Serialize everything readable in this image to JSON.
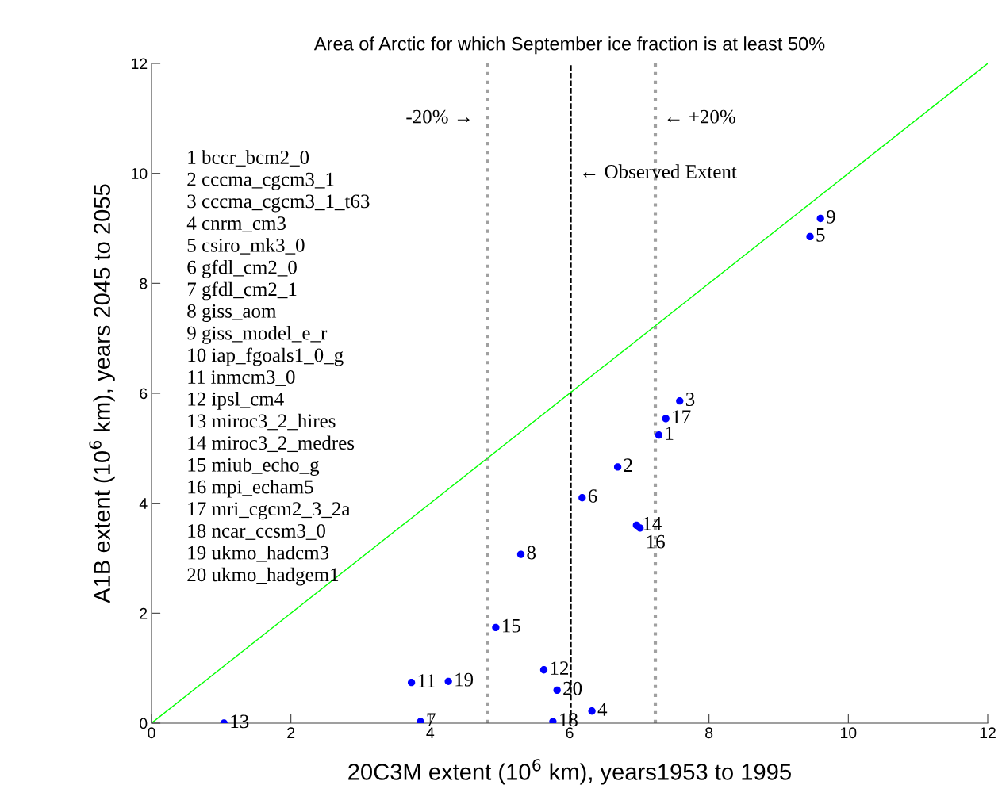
{
  "chart_data": {
    "type": "scatter",
    "title": "Area of Arctic for which September ice fraction is at least 50%",
    "xlabel": "20C3M extent (10$^{6}$ km), years1953 to 1995",
    "ylabel": "A1B extent (10$^{6}$ km), years 2045 to 2055",
    "xlim": [
      0,
      12
    ],
    "ylim": [
      0,
      12
    ],
    "xticks": [
      0,
      2,
      4,
      6,
      8,
      10,
      12
    ],
    "yticks": [
      0,
      2,
      4,
      6,
      8,
      10,
      12
    ],
    "grid": false,
    "legend": false,
    "marker": "circle",
    "series": [
      {
        "color": "#0000ff",
        "x": [
          7.28,
          6.69,
          7.58,
          6.32,
          9.45,
          6.18,
          3.86,
          5.3,
          9.6,
          3.73,
          5.63,
          1.04,
          6.96,
          4.94,
          7.01,
          7.38,
          5.76,
          4.26,
          5.82
        ],
        "values": [
          5.24,
          4.66,
          5.86,
          0.22,
          8.85,
          4.1,
          0.03,
          3.07,
          9.18,
          0.74,
          0.97,
          0.0,
          3.6,
          1.74,
          3.55,
          5.54,
          0.03,
          0.76,
          0.6
        ]
      },
      {
        "type": "line",
        "marker": "none",
        "color": "#00ff00",
        "x": [
          0,
          12
        ],
        "values": [
          0,
          12
        ]
      }
    ],
    "ref_lines": [
      {
        "axis": "x",
        "value": 4.82,
        "label": "-20% →",
        "color": "#a0a0a0",
        "line_style": "dotted"
      },
      {
        "axis": "x",
        "value": 6.02,
        "label": "← Observed Extent",
        "color": "#000000",
        "line_style": "dashed"
      },
      {
        "axis": "x",
        "value": 7.23,
        "label": "← +20%",
        "color": "#a0a0a0",
        "line_style": "dotted"
      }
    ],
    "annotations": [
      {
        "text": "1",
        "x": 7.28,
        "y": 5.24
      },
      {
        "text": "2",
        "x": 6.69,
        "y": 4.66
      },
      {
        "text": "3",
        "x": 7.58,
        "y": 5.86
      },
      {
        "text": "4",
        "x": 6.32,
        "y": 0.22
      },
      {
        "text": "5",
        "x": 9.45,
        "y": 8.85
      },
      {
        "text": "6",
        "x": 6.18,
        "y": 4.1
      },
      {
        "text": "7",
        "x": 3.86,
        "y": 0.03
      },
      {
        "text": "8",
        "x": 5.3,
        "y": 3.07
      },
      {
        "text": "9",
        "x": 9.6,
        "y": 9.18
      },
      {
        "text": "11",
        "x": 3.73,
        "y": 0.74
      },
      {
        "text": "12",
        "x": 5.63,
        "y": 0.97
      },
      {
        "text": "13",
        "x": 1.04,
        "y": 0.0
      },
      {
        "text": "14",
        "x": 6.96,
        "y": 3.6
      },
      {
        "text": "15",
        "x": 4.94,
        "y": 1.74
      },
      {
        "text": "16",
        "x": 7.01,
        "y": 3.55
      },
      {
        "text": "17",
        "x": 7.38,
        "y": 5.54
      },
      {
        "text": "18",
        "x": 5.76,
        "y": 0.03
      },
      {
        "text": "19",
        "x": 4.26,
        "y": 0.76
      },
      {
        "text": "20",
        "x": 5.82,
        "y": 0.6
      },
      "1 bccr_bcm2_0",
      "2 cccma_cgcm3_1",
      "3 cccma_cgcm3_1_t63",
      "4 cnrm_cm3",
      "5 csiro_mk3_0",
      "6 gfdl_cm2_0",
      "7 gfdl_cm2_1",
      "8 giss_aom",
      "9 giss_model_e_r",
      "10 iap_fgoals1_0_g",
      "11 inmcm3_0",
      "12 ipsl_cm4",
      "13 miroc3_2_hires",
      "14 miroc3_2_medres",
      "15 miub_echo_g",
      "16 mpi_echam5",
      "17 mri_cgcm2_3_2a",
      "18 ncar_ccsm3_0",
      "19 ukmo_hadcm3",
      "20 ukmo_hadgem1"
    ]
  }
}
